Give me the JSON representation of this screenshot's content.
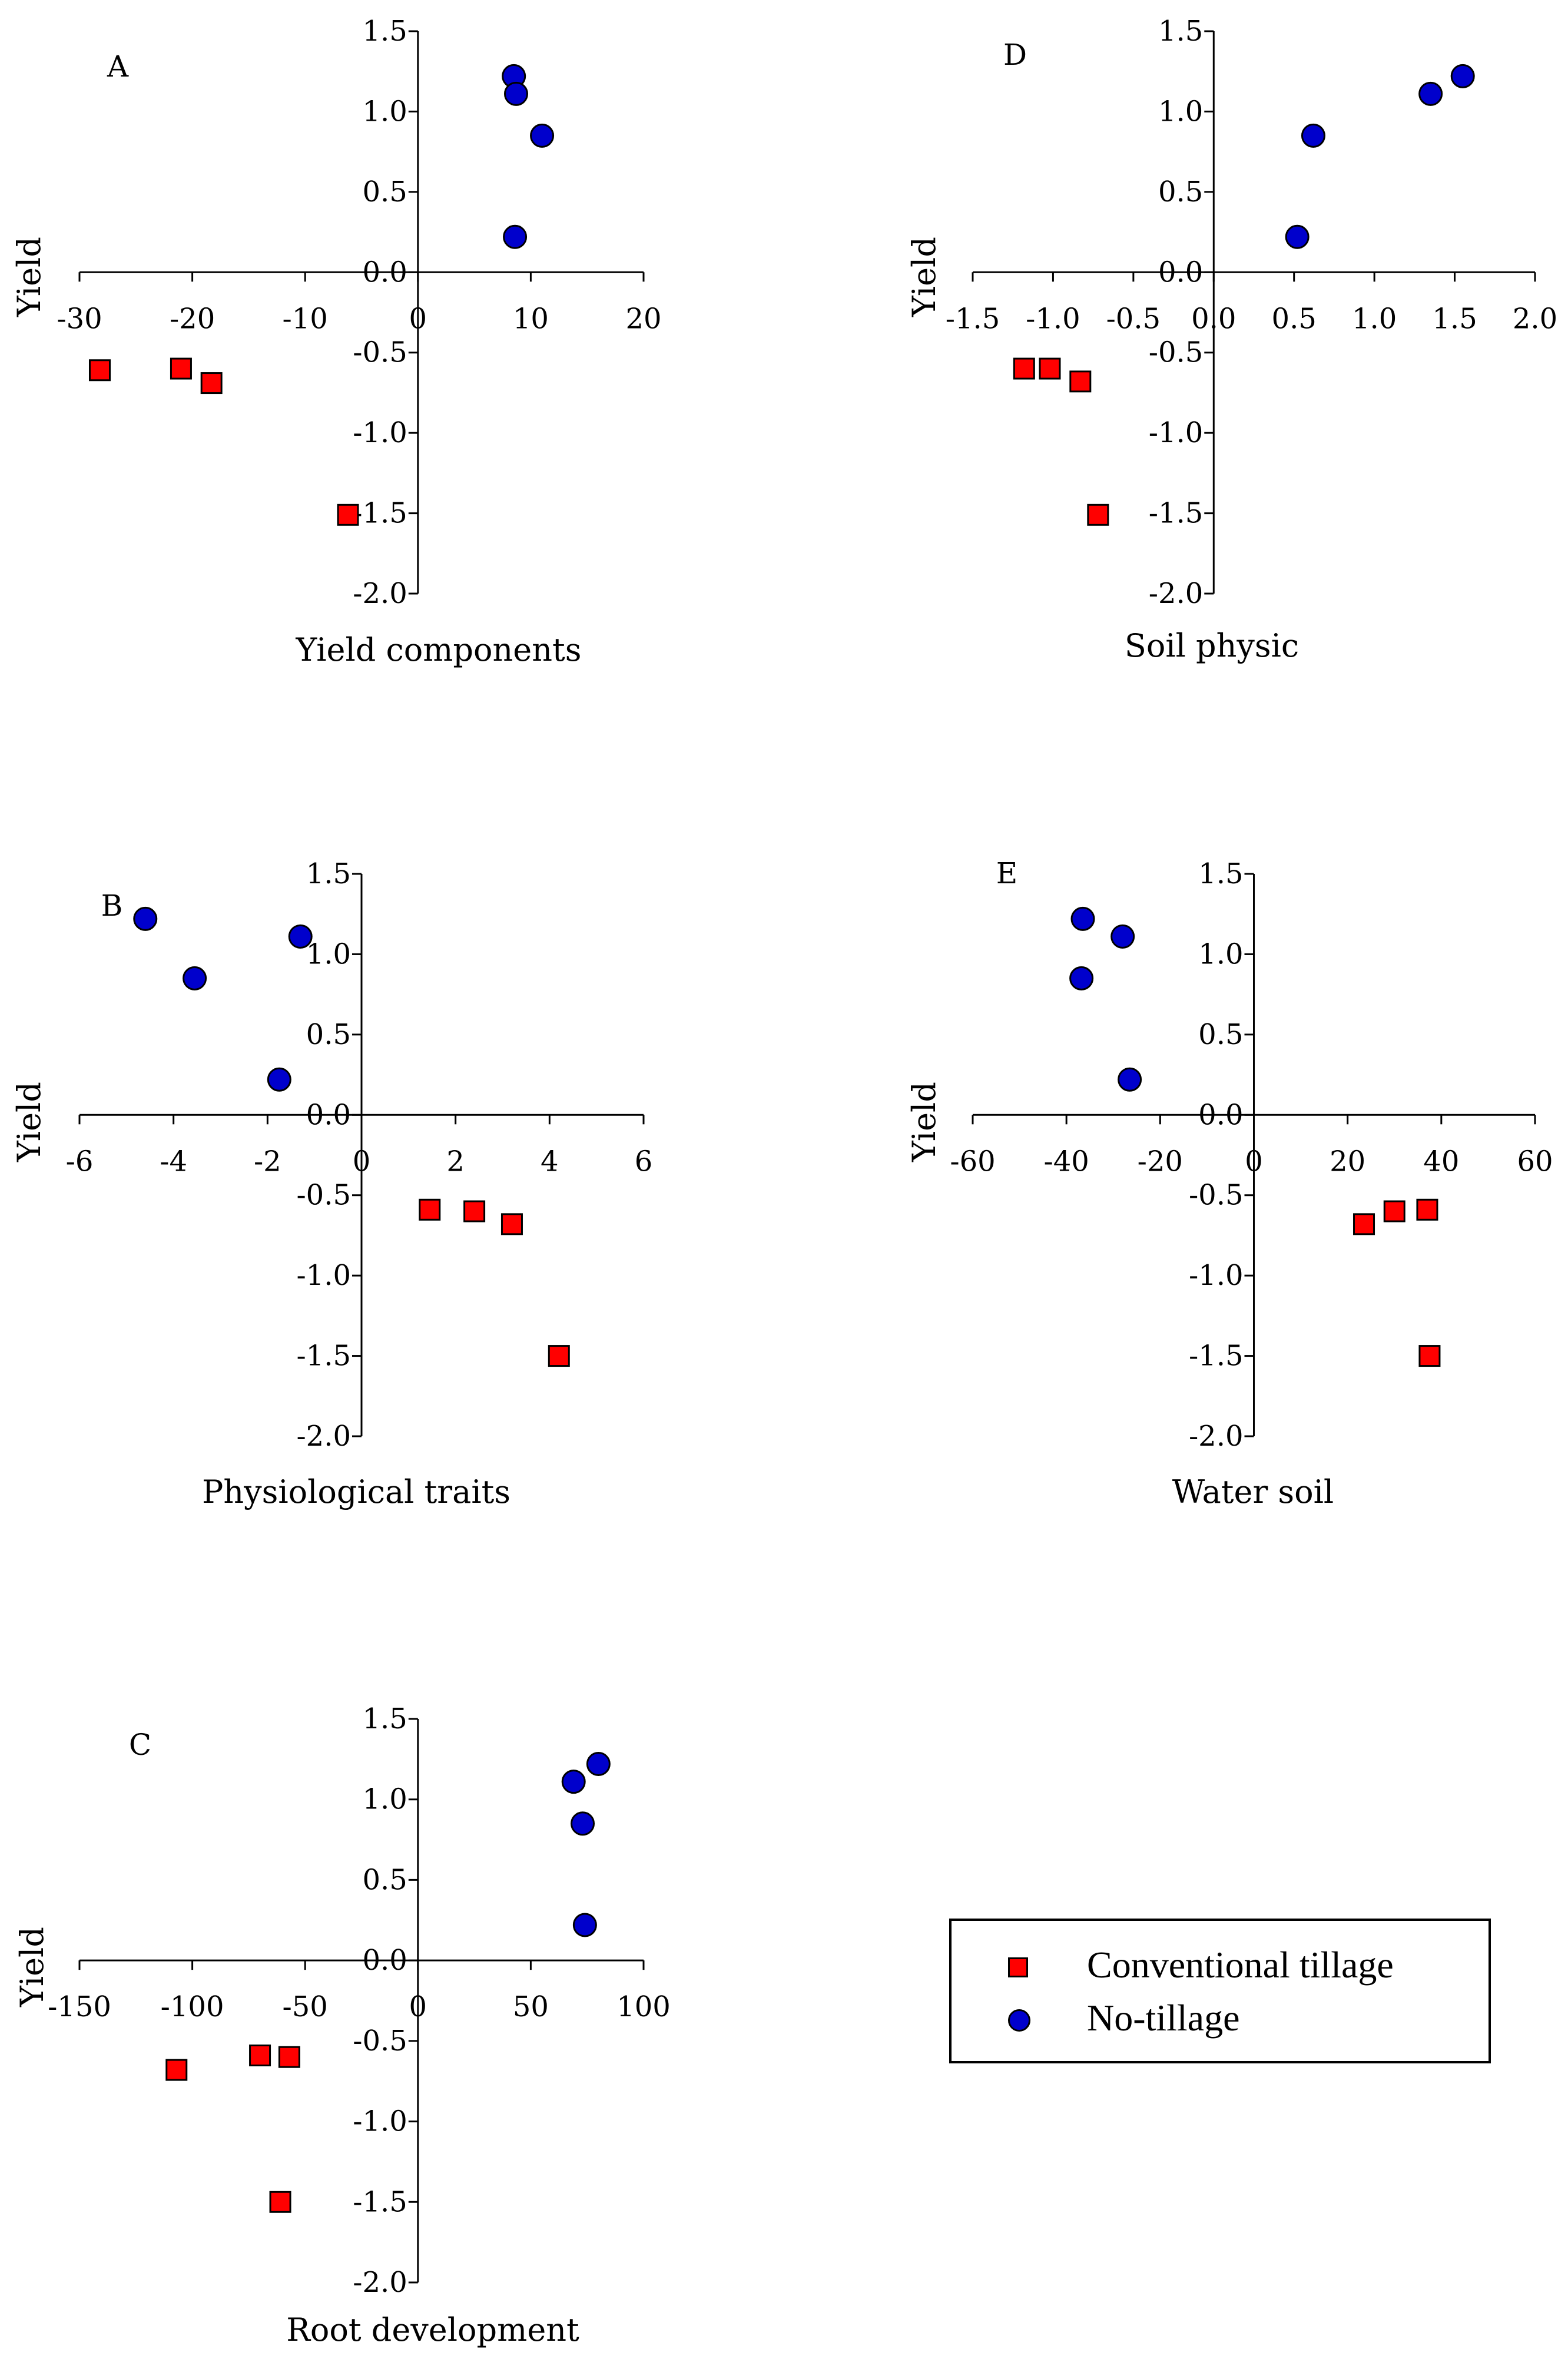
{
  "legend": {
    "conventional_label": "Conventional tillage",
    "notillage_label": "No-tillage",
    "conventional_color": "#ff0000",
    "notillage_color": "#0000cc"
  },
  "chart_data": [
    {
      "panel": "A",
      "type": "scatter",
      "xlabel": "Yield components",
      "ylabel": "Yield",
      "xlim": [
        -30,
        20
      ],
      "ylim": [
        -2.0,
        1.5
      ],
      "xticks": [
        "-30",
        "-20",
        "-10",
        "0",
        "10",
        "20"
      ],
      "yticks": [
        "1.5",
        "1.0",
        "0.5",
        "0.0",
        "-0.5",
        "-1.0",
        "-1.5",
        "-2.0"
      ],
      "series": [
        {
          "name": "Conventional tillage",
          "points": [
            [
              -28.2,
              -0.61
            ],
            [
              -21.0,
              -0.6
            ],
            [
              -18.3,
              -0.69
            ],
            [
              -6.2,
              -1.51
            ]
          ]
        },
        {
          "name": "No-tillage",
          "points": [
            [
              8.5,
              1.22
            ],
            [
              8.7,
              1.11
            ],
            [
              11.0,
              0.85
            ],
            [
              8.6,
              0.22
            ]
          ]
        }
      ]
    },
    {
      "panel": "B",
      "type": "scatter",
      "xlabel": "Physiological traits",
      "ylabel": "Yield",
      "xlim": [
        -6,
        6
      ],
      "ylim": [
        -2.0,
        1.5
      ],
      "xticks": [
        "-6",
        "-4",
        "-2",
        "0",
        "2",
        "4",
        "6"
      ],
      "yticks": [
        "1.5",
        "1.0",
        "0.5",
        "0.0",
        "-0.5",
        "-1.0",
        "-1.5",
        "-2.0"
      ],
      "series": [
        {
          "name": "Conventional tillage",
          "points": [
            [
              1.45,
              -0.59
            ],
            [
              2.4,
              -0.6
            ],
            [
              3.2,
              -0.68
            ],
            [
              4.2,
              -1.5
            ]
          ]
        },
        {
          "name": "No-tillage",
          "points": [
            [
              -4.6,
              1.22
            ],
            [
              -3.55,
              0.85
            ],
            [
              -1.3,
              1.11
            ],
            [
              -1.75,
              0.22
            ]
          ]
        }
      ]
    },
    {
      "panel": "C",
      "type": "scatter",
      "xlabel": "Root development",
      "ylabel": "Yield",
      "xlim": [
        -150,
        100
      ],
      "ylim": [
        -2.0,
        1.5
      ],
      "xticks": [
        "-150",
        "-100",
        "-50",
        "0",
        "50",
        "100"
      ],
      "yticks": [
        "1.5",
        "1.0",
        "0.5",
        "0.0",
        "-0.5",
        "-1.0",
        "-1.5",
        "-2.0"
      ],
      "series": [
        {
          "name": "Conventional tillage",
          "points": [
            [
              -107,
              -0.68
            ],
            [
              -70,
              -0.59
            ],
            [
              -57,
              -0.6
            ],
            [
              -61,
              -1.5
            ]
          ]
        },
        {
          "name": "No-tillage",
          "points": [
            [
              80,
              1.22
            ],
            [
              69,
              1.11
            ],
            [
              73,
              0.85
            ],
            [
              74,
              0.22
            ]
          ]
        }
      ]
    },
    {
      "panel": "D",
      "type": "scatter",
      "xlabel": "Soil physic",
      "ylabel": "Yield",
      "xlim": [
        -1.5,
        2.0
      ],
      "ylim": [
        -2.0,
        1.5
      ],
      "xticks": [
        "-1.5",
        "-1.0",
        "-0.5",
        "0.0",
        "0.5",
        "1.0",
        "1.5",
        "2.0"
      ],
      "yticks": [
        "1.5",
        "1.0",
        "0.5",
        "0.0",
        "-0.5",
        "-1.0",
        "-1.5",
        "-2.0"
      ],
      "series": [
        {
          "name": "Conventional tillage",
          "points": [
            [
              -1.18,
              -0.6
            ],
            [
              -1.02,
              -0.6
            ],
            [
              -0.83,
              -0.68
            ],
            [
              -0.72,
              -1.51
            ]
          ]
        },
        {
          "name": "No-tillage",
          "points": [
            [
              1.55,
              1.22
            ],
            [
              1.35,
              1.11
            ],
            [
              0.62,
              0.85
            ],
            [
              0.52,
              0.22
            ]
          ]
        }
      ]
    },
    {
      "panel": "E",
      "type": "scatter",
      "xlabel": "Water soil",
      "ylabel": "Yield",
      "xlim": [
        -60,
        60
      ],
      "ylim": [
        -2.0,
        1.5
      ],
      "xticks": [
        "-60",
        "-40",
        "-20",
        "0",
        "20",
        "40",
        "60"
      ],
      "yticks": [
        "1.5",
        "1.0",
        "0.5",
        "0.0",
        "-0.5",
        "-1.0",
        "-1.5",
        "-2.0"
      ],
      "series": [
        {
          "name": "Conventional tillage",
          "points": [
            [
              37,
              -0.59
            ],
            [
              30,
              -0.6
            ],
            [
              23.5,
              -0.68
            ],
            [
              37.5,
              -1.5
            ]
          ]
        },
        {
          "name": "No-tillage",
          "points": [
            [
              -36.5,
              1.22
            ],
            [
              -28,
              1.11
            ],
            [
              -36.8,
              0.85
            ],
            [
              -26.5,
              0.22
            ]
          ]
        }
      ]
    }
  ]
}
